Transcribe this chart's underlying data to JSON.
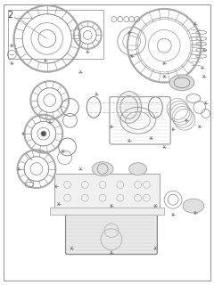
{
  "title": "",
  "background_color": "#ffffff",
  "border_color": "#cccccc",
  "diagram_color": "#888888",
  "line_color": "#555555",
  "light_gray": "#aaaaaa",
  "dark_gray": "#666666",
  "part_number": "2",
  "fig_width": 2.4,
  "fig_height": 3.2,
  "dpi": 100
}
